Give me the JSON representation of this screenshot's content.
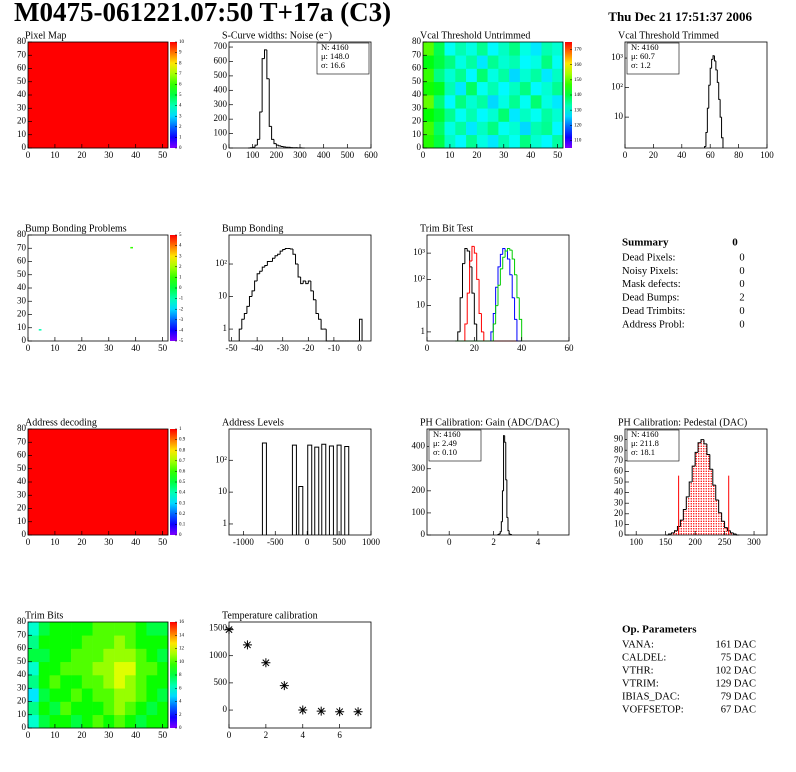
{
  "header": {
    "title": "M0475-061221.07:50 T+17a (C3)",
    "date": "Thu Dec 21 17:51:37 2006"
  },
  "chart_data": [
    {
      "type": "heatmap",
      "title": "Pixel Map",
      "xlim": [
        0,
        52
      ],
      "ylim": [
        0,
        80
      ],
      "xticks": [
        0,
        10,
        20,
        30,
        40,
        50
      ],
      "yticks": [
        0,
        10,
        20,
        30,
        40,
        50,
        60,
        70,
        80
      ],
      "xbins": [
        0,
        52
      ],
      "ybins": [
        0,
        80
      ],
      "values": [
        [
          10
        ]
      ],
      "zlim": [
        0,
        10
      ],
      "zticks": [
        0,
        1,
        2,
        3,
        4,
        5,
        6,
        7,
        8,
        9,
        10
      ]
    },
    {
      "type": "histogram",
      "title": "S-Curve widths: Noise (e⁻)",
      "xlim": [
        0,
        600
      ],
      "ylim": [
        0,
        735
      ],
      "xticks": [
        0,
        100,
        200,
        300,
        400,
        500,
        600
      ],
      "yticks": [
        0,
        100,
        200,
        300,
        400,
        500,
        600,
        700
      ],
      "bins": [
        80,
        90,
        100,
        110,
        120,
        130,
        140,
        150,
        160,
        170,
        180,
        190,
        200,
        210,
        220,
        230,
        240,
        250,
        260,
        270,
        280,
        290,
        300,
        310,
        320
      ],
      "values": [
        0,
        2,
        5,
        20,
        60,
        250,
        620,
        680,
        480,
        150,
        60,
        30,
        20,
        15,
        10,
        8,
        5,
        5,
        3,
        2,
        2,
        1,
        1,
        0
      ],
      "color": "#000000",
      "stats": [
        "N: 4160",
        "μ: 148.0",
        "σ: 16.6"
      ],
      "stats_corner": "upper right"
    },
    {
      "type": "heatmap",
      "title": "Vcal Threshold Untrimmed",
      "xlim": [
        0,
        52
      ],
      "ylim": [
        0,
        80
      ],
      "xticks": [
        0,
        10,
        20,
        30,
        40,
        50
      ],
      "yticks": [
        0,
        10,
        20,
        30,
        40,
        50,
        60,
        70,
        80
      ],
      "xbins": [
        0,
        4,
        8,
        12,
        16,
        20,
        24,
        28,
        32,
        36,
        40,
        44,
        48,
        52
      ],
      "ybins": [
        0,
        10,
        20,
        30,
        40,
        50,
        60,
        70,
        80
      ],
      "values": [
        [
          146,
          140,
          132,
          128,
          135,
          130,
          127,
          133,
          129,
          136,
          131,
          128,
          134
        ],
        [
          148,
          138,
          130,
          134,
          127,
          132,
          136,
          129,
          131,
          126,
          133,
          135,
          128
        ],
        [
          144,
          141,
          135,
          129,
          133,
          128,
          131,
          137,
          127,
          132,
          129,
          134,
          131
        ],
        [
          150,
          137,
          128,
          136,
          131,
          134,
          126,
          130,
          135,
          129,
          137,
          130,
          127
        ],
        [
          145,
          142,
          133,
          127,
          138,
          129,
          133,
          128,
          132,
          136,
          128,
          131,
          135
        ],
        [
          147,
          136,
          131,
          135,
          128,
          137,
          130,
          134,
          126,
          131,
          134,
          127,
          132
        ],
        [
          143,
          140,
          136,
          130,
          134,
          127,
          135,
          131,
          133,
          128,
          130,
          136,
          129
        ],
        [
          149,
          139,
          129,
          133,
          130,
          135,
          128,
          132,
          136,
          130,
          127,
          133,
          131
        ]
      ],
      "zlim": [
        105,
        175
      ],
      "zticks": [
        110,
        120,
        130,
        140,
        150,
        160,
        170
      ]
    },
    {
      "type": "histogram",
      "title": "Vcal Threshold Trimmed",
      "log_y": true,
      "xlim": [
        0,
        100
      ],
      "ylim": [
        0.9,
        3500
      ],
      "xticks": [
        0,
        20,
        40,
        60,
        80,
        100
      ],
      "yticks": [
        10,
        {
          "value": 100,
          "label": "10²"
        },
        {
          "value": 1000,
          "label": "10³"
        }
      ],
      "bins": [
        56,
        57,
        58,
        59,
        60,
        61,
        62,
        63,
        64,
        65,
        66,
        67,
        68,
        69
      ],
      "values": [
        1,
        3,
        20,
        120,
        450,
        900,
        1200,
        800,
        400,
        150,
        40,
        10,
        2
      ],
      "color": "#000000",
      "stats": [
        "N: 4160",
        "μ: 60.7",
        "σ:  1.2"
      ],
      "stats_corner": "upper left"
    },
    {
      "type": "cellmap",
      "title": "Bump Bonding Problems",
      "xlim": [
        0,
        52
      ],
      "ylim": [
        0,
        80
      ],
      "xticks": [
        0,
        10,
        20,
        30,
        40,
        50
      ],
      "yticks": [
        0,
        10,
        20,
        30,
        40,
        50,
        60,
        70,
        80
      ],
      "x": [
        38,
        4
      ],
      "y": [
        70,
        8
      ],
      "values": [
        1,
        -1
      ],
      "zlim": [
        -5,
        5
      ],
      "zticks": [
        -5,
        -4,
        -3,
        -2,
        -1,
        0,
        1,
        2,
        3,
        4,
        5
      ]
    },
    {
      "type": "histogram",
      "title": "Bump Bonding",
      "log_y": true,
      "xlim": [
        -51,
        4.5
      ],
      "ylim": [
        0.43,
        780
      ],
      "xticks": [
        -50,
        -40,
        -30,
        -20,
        -10,
        0
      ],
      "yticks": [
        1,
        10,
        {
          "value": 100,
          "label": "10²"
        }
      ],
      "bins": [
        -47,
        -46,
        -45,
        -44,
        -43,
        -42,
        -41,
        -40,
        -39,
        -38,
        -37,
        -36,
        -35,
        -34,
        -33,
        -32,
        -31,
        -30,
        -29,
        -28,
        -27,
        -26,
        -25,
        -24,
        -23,
        -22,
        -21,
        -20,
        -19,
        -18,
        -17,
        -16,
        -15,
        -14,
        -13,
        -12,
        -11,
        -10,
        -9,
        -8,
        -7,
        -6,
        -5,
        -4,
        -3,
        -2,
        -1,
        0,
        1
      ],
      "values": [
        1,
        2,
        3,
        5,
        10,
        15,
        30,
        50,
        60,
        80,
        90,
        120,
        120,
        150,
        180,
        200,
        250,
        280,
        300,
        300,
        290,
        200,
        100,
        40,
        25,
        30,
        25,
        30,
        15,
        8,
        3,
        2,
        1,
        1,
        0,
        0,
        0,
        0,
        0,
        0,
        0,
        0,
        0,
        0,
        0,
        0,
        0,
        2
      ],
      "color": "#000000"
    },
    {
      "type": "histogram",
      "title": "Trim Bit Test",
      "log_y": true,
      "xlim": [
        0,
        60
      ],
      "ylim": [
        0.45,
        4900
      ],
      "xticks": [
        0,
        20,
        40,
        60
      ],
      "yticks": [
        1,
        10,
        {
          "value": 100,
          "label": "10²"
        },
        {
          "value": 1000,
          "label": "10³"
        }
      ],
      "bins": [
        12,
        13,
        14,
        15,
        16,
        17,
        18,
        19,
        20,
        21,
        22,
        23,
        24,
        25,
        26,
        27,
        28,
        29,
        30,
        31,
        32,
        33,
        34,
        35,
        36,
        37,
        38,
        39,
        40
      ],
      "series": [
        {
          "color": "#000000",
          "values": [
            0,
            1,
            20,
            400,
            1500,
            1200,
            300,
            30,
            2,
            0,
            0,
            0,
            0,
            0,
            0,
            0,
            0,
            0,
            0,
            0,
            0,
            0,
            0,
            0,
            0,
            0,
            0,
            0
          ]
        },
        {
          "color": "#ff0000",
          "values": [
            0,
            0,
            0,
            0,
            2,
            30,
            500,
            1800,
            1000,
            100,
            5,
            1,
            0,
            0,
            0,
            0,
            0,
            0,
            0,
            0,
            0,
            0,
            0,
            0,
            0,
            0,
            0,
            0
          ]
        },
        {
          "color": "#0000ff",
          "values": [
            0,
            0,
            0,
            0,
            0,
            0,
            0,
            0,
            0,
            0,
            0,
            0,
            0,
            0,
            0,
            1,
            5,
            50,
            300,
            900,
            1500,
            1200,
            600,
            150,
            20,
            3,
            0,
            0
          ]
        },
        {
          "color": "#00cc00",
          "values": [
            0,
            0,
            0,
            0,
            0,
            0,
            0,
            0,
            0,
            0,
            0,
            0,
            0,
            0,
            0,
            0,
            2,
            10,
            60,
            250,
            700,
            1200,
            1500,
            1300,
            600,
            150,
            20,
            3
          ]
        }
      ]
    },
    {
      "type": "heatmap",
      "title": "Address decoding",
      "xlim": [
        0,
        52
      ],
      "ylim": [
        0,
        80
      ],
      "xticks": [
        0,
        10,
        20,
        30,
        40,
        50
      ],
      "yticks": [
        0,
        10,
        20,
        30,
        40,
        50,
        60,
        70,
        80
      ],
      "xbins": [
        0,
        52
      ],
      "ybins": [
        0,
        80
      ],
      "values": [
        [
          1
        ]
      ],
      "zlim": [
        0,
        1
      ],
      "zticks": [
        0,
        0.1,
        0.2,
        0.3,
        0.4,
        0.5,
        0.6,
        0.7,
        0.8,
        0.9,
        1
      ]
    },
    {
      "type": "spikes",
      "title": "Address Levels",
      "log_y": true,
      "xlim": [
        -1225,
        1000
      ],
      "ylim": [
        0.45,
        960
      ],
      "xticks": [
        -1000,
        -500,
        0,
        500,
        1000
      ],
      "yticks": [
        1,
        10,
        {
          "value": 100,
          "label": "10²"
        }
      ],
      "x": [
        -670,
        -200,
        -100,
        40,
        150,
        260,
        380,
        500,
        620
      ],
      "values": [
        350,
        300,
        15,
        300,
        260,
        320,
        280,
        300,
        270
      ],
      "color": "#000000"
    },
    {
      "type": "histogram",
      "title": "PH Calibration: Gain (ADC/DAC)",
      "xlim": [
        -1,
        5.4
      ],
      "ylim": [
        0,
        480
      ],
      "xticks": [
        0,
        2,
        4
      ],
      "yticks": [
        0,
        100,
        200,
        300,
        400
      ],
      "bins": [
        2.2,
        2.25,
        2.3,
        2.35,
        2.4,
        2.45,
        2.5,
        2.55,
        2.6,
        2.65,
        2.7,
        2.75,
        2.8
      ],
      "values": [
        2,
        5,
        15,
        60,
        200,
        450,
        420,
        250,
        80,
        20,
        5,
        2
      ],
      "color": "#000000",
      "stats": [
        "N: 4160",
        "μ: 2.49",
        "σ: 0.10"
      ],
      "stats_corner": "upper left"
    },
    {
      "type": "histogram",
      "title": "PH Calibration: Pedestal (DAC)",
      "xlim": [
        81,
        322
      ],
      "ylim": [
        0,
        100
      ],
      "xticks": [
        100,
        150,
        200,
        250,
        300
      ],
      "yticks": [
        0,
        10,
        20,
        30,
        40,
        50,
        60,
        70,
        80,
        90
      ],
      "bins": [
        150,
        155,
        160,
        165,
        170,
        175,
        180,
        185,
        190,
        195,
        200,
        205,
        210,
        215,
        220,
        225,
        230,
        235,
        240,
        245,
        250,
        255,
        260,
        265,
        270,
        275
      ],
      "values": [
        0,
        1,
        2,
        4,
        8,
        14,
        24,
        36,
        50,
        65,
        78,
        87,
        90,
        86,
        76,
        62,
        47,
        33,
        21,
        13,
        7,
        4,
        2,
        1,
        0
      ],
      "color": "#000000",
      "fill_color": "#ff0000",
      "range_lines": {
        "x": [
          172,
          257
        ],
        "values": [
          56,
          56
        ],
        "color": "#ff0000"
      },
      "stats": [
        "N: 4160",
        "μ: 211.8",
        "σ: 18.1"
      ],
      "stats_colors": [
        "#000000",
        "#ff0000",
        "#ff0000"
      ],
      "stats_corner": "upper left"
    },
    {
      "type": "heatmap",
      "title": "Trim Bits",
      "xlim": [
        0,
        52
      ],
      "ylim": [
        0,
        80
      ],
      "xticks": [
        0,
        10,
        20,
        30,
        40,
        50
      ],
      "yticks": [
        0,
        10,
        20,
        30,
        40,
        50,
        60,
        70,
        80
      ],
      "xbins": [
        0,
        4,
        8,
        12,
        16,
        20,
        24,
        28,
        32,
        36,
        40,
        44,
        48,
        52
      ],
      "ybins": [
        0,
        10,
        20,
        30,
        40,
        50,
        60,
        70,
        80
      ],
      "values": [
        [
          6,
          8,
          9,
          9,
          8,
          9,
          10,
          9,
          10,
          9,
          8,
          9,
          9
        ],
        [
          7,
          9,
          8,
          10,
          9,
          9,
          9,
          10,
          11,
          10,
          9,
          8,
          9
        ],
        [
          5,
          8,
          9,
          9,
          10,
          9,
          10,
          10,
          11,
          11,
          10,
          9,
          8
        ],
        [
          7,
          9,
          10,
          9,
          9,
          10,
          10,
          11,
          12,
          11,
          10,
          9,
          9
        ],
        [
          6,
          9,
          9,
          10,
          10,
          10,
          11,
          11,
          12,
          12,
          10,
          10,
          9
        ],
        [
          8,
          8,
          9,
          9,
          10,
          10,
          10,
          11,
          11,
          11,
          10,
          9,
          8
        ],
        [
          7,
          9,
          9,
          9,
          9,
          10,
          10,
          10,
          11,
          10,
          9,
          9,
          9
        ],
        [
          6,
          8,
          9,
          9,
          9,
          9,
          10,
          10,
          10,
          10,
          9,
          8,
          8
        ]
      ],
      "zlim": [
        0,
        16
      ],
      "zticks": [
        0,
        2,
        4,
        6,
        8,
        10,
        12,
        14,
        16
      ]
    },
    {
      "type": "scatter",
      "title": "Temperature calibration",
      "xlim": [
        0,
        7.7
      ],
      "ylim": [
        -330,
        1620
      ],
      "xticks": [
        0,
        2,
        4,
        6
      ],
      "yticks": [
        0,
        500,
        1000,
        1500
      ],
      "x": [
        0,
        1,
        2,
        3,
        4,
        5,
        6,
        7
      ],
      "values": [
        1480,
        1200,
        870,
        450,
        0,
        -20,
        -30,
        -30
      ],
      "color": "#000000"
    }
  ],
  "summary": {
    "title": "Summary",
    "value": 0,
    "rows": [
      {
        "label": "Dead Pixels:",
        "value": 0
      },
      {
        "label": "Noisy Pixels:",
        "value": 0
      },
      {
        "label": "Mask defects:",
        "value": 0
      },
      {
        "label": "Dead Bumps:",
        "value": 2
      },
      {
        "label": "Dead Trimbits:",
        "value": 0
      },
      {
        "label": "Address Probl:",
        "value": 0
      }
    ]
  },
  "op_parameters": {
    "title": "Op. Parameters",
    "rows": [
      {
        "label": "VANA:",
        "value": "161 DAC"
      },
      {
        "label": "CALDEL:",
        "value": "75 DAC"
      },
      {
        "label": "VTHR:",
        "value": "102 DAC"
      },
      {
        "label": "VTRIM:",
        "value": "129 DAC"
      },
      {
        "label": "IBIAS_DAC:",
        "value": "79 DAC"
      },
      {
        "label": "VOFFSETOP:",
        "value": "67 DAC"
      }
    ]
  }
}
